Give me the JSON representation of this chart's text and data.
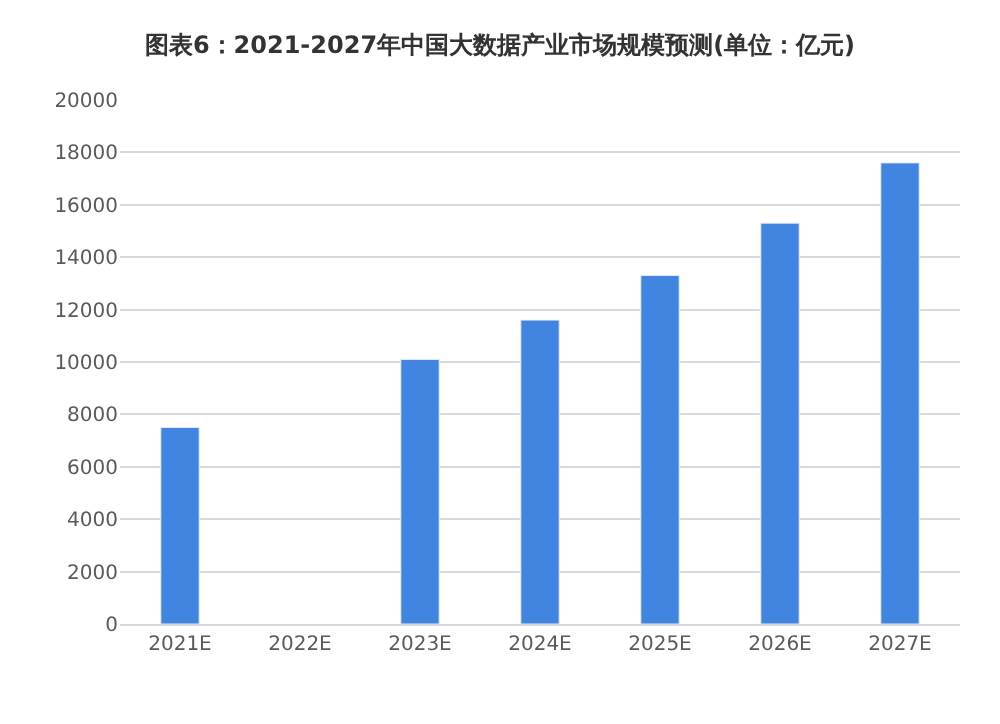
{
  "chart_data": {
    "type": "bar",
    "title": "图表6：2021-2027年中国大数据产业市场规模预测(单位：亿元)",
    "categories": [
      "2021E",
      "2022E",
      "2023E",
      "2024E",
      "2025E",
      "2026E",
      "2027E"
    ],
    "values": [
      7500,
      null,
      10100,
      11600,
      13300,
      15300,
      17600
    ],
    "color": "#4285e0",
    "ylim": [
      0,
      20000
    ],
    "yticks": [
      0,
      2000,
      4000,
      6000,
      8000,
      10000,
      12000,
      14000,
      16000,
      18000,
      20000
    ],
    "grid": "y"
  }
}
